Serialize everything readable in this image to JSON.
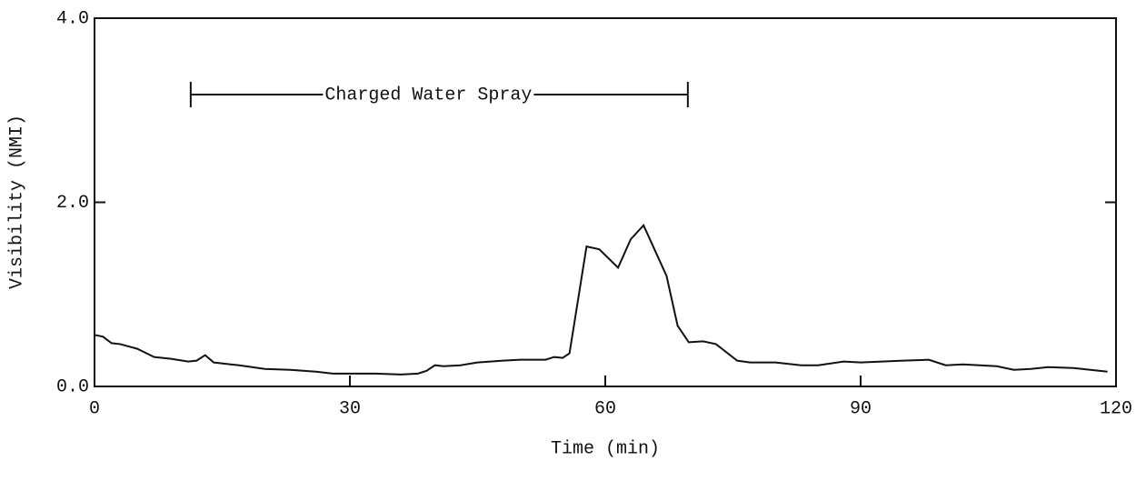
{
  "chart_data": {
    "type": "line",
    "x_label": "Time (min)",
    "y_label": "Visibility (NMI)",
    "xlim": [
      0,
      120
    ],
    "ylim": [
      0,
      4.0
    ],
    "xticks": [
      0,
      30,
      60,
      90,
      120
    ],
    "yticks": [
      {
        "value": 0,
        "label": "0.0"
      },
      {
        "value": 2.0,
        "label": "2.0"
      },
      {
        "value": 4.0,
        "label": "4.0"
      }
    ],
    "annotation": {
      "text": "Charged Water Spray",
      "x": [
        11.3,
        69.7
      ],
      "y": 3.17
    },
    "series": [
      {
        "color": "#111111",
        "x": [
          0,
          1,
          2,
          3,
          5,
          7,
          9,
          11,
          12,
          13,
          14,
          17,
          20,
          23,
          26,
          28,
          33,
          36,
          38,
          39,
          40,
          41,
          43,
          45,
          48,
          50,
          53,
          54,
          55,
          55.8,
          57.8,
          59.3,
          61.5,
          63,
          64.5,
          67.2,
          68.5,
          69.8,
          71.5,
          73,
          75.5,
          77,
          80,
          83,
          85,
          88,
          90,
          95,
          98,
          100,
          102,
          106,
          108,
          110,
          112,
          115,
          119
        ],
        "values": [
          0.56,
          0.54,
          0.47,
          0.46,
          0.41,
          0.32,
          0.3,
          0.27,
          0.28,
          0.34,
          0.26,
          0.23,
          0.19,
          0.18,
          0.16,
          0.14,
          0.14,
          0.13,
          0.14,
          0.17,
          0.23,
          0.22,
          0.23,
          0.26,
          0.28,
          0.29,
          0.29,
          0.32,
          0.31,
          0.36,
          1.52,
          1.49,
          1.29,
          1.6,
          1.75,
          1.2,
          0.66,
          0.48,
          0.49,
          0.46,
          0.28,
          0.26,
          0.26,
          0.23,
          0.23,
          0.27,
          0.26,
          0.28,
          0.29,
          0.23,
          0.24,
          0.22,
          0.18,
          0.19,
          0.21,
          0.2,
          0.16
        ]
      }
    ]
  }
}
